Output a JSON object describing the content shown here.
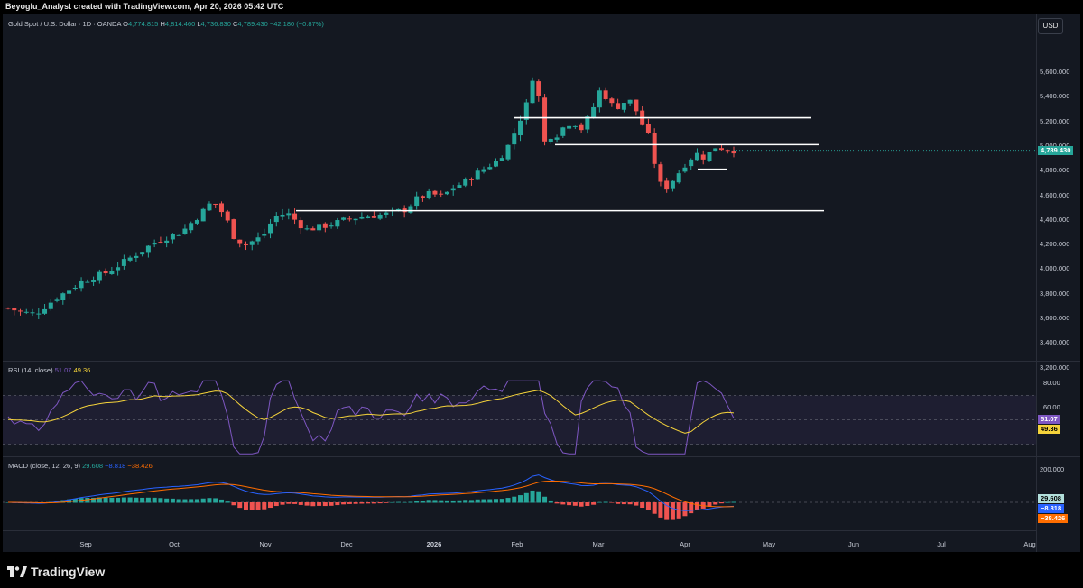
{
  "header": {
    "caption": "Beyoglu_Analyst created with TradingView.com, Apr 20, 2026 05:42 UTC"
  },
  "chart": {
    "symbol": "Gold Spot / U.S. Dollar · 1D · OANDA",
    "ohlc": {
      "o_label": "O",
      "o": "4,774.815",
      "h_label": "H",
      "h": "4,814.460",
      "l_label": "L",
      "l": "4,736.830",
      "c_label": "C",
      "c": "4,789.430",
      "change": "−42.180 (−0.87%)"
    },
    "currency": "USD",
    "last_price": "4,789.430",
    "price_ticks": [
      "5,600.000",
      "5,400.000",
      "5,200.000",
      "5,000.000",
      "4,800.000",
      "4,600.000",
      "4,400.000",
      "4,200.000",
      "4,000.000",
      "3,800.000",
      "3,600.000",
      "3,400.000",
      "3,200.000"
    ]
  },
  "rsi": {
    "title": "RSI (14, close)",
    "value": "51.07",
    "ma": "49.36",
    "ticks": [
      "80.00",
      "60.00"
    ]
  },
  "macd": {
    "title": "MACD (close, 12, 26, 9)",
    "hist": "29.608",
    "macd": "−8.818",
    "signal": "−38.426",
    "tick": "200.000"
  },
  "xaxis": [
    "Sep",
    "Oct",
    "Nov",
    "Dec",
    "2026",
    "Feb",
    "Mar",
    "Apr",
    "May",
    "Jun",
    "Jul",
    "Aug"
  ],
  "brand": "TradingView",
  "colors": {
    "up": "#26a69a",
    "down": "#ef5350",
    "rsi": "#7e57c2",
    "rsi_ma": "#f5d33b",
    "macd": "#2962ff",
    "signal": "#ff6d00",
    "bg": "#141821"
  }
}
